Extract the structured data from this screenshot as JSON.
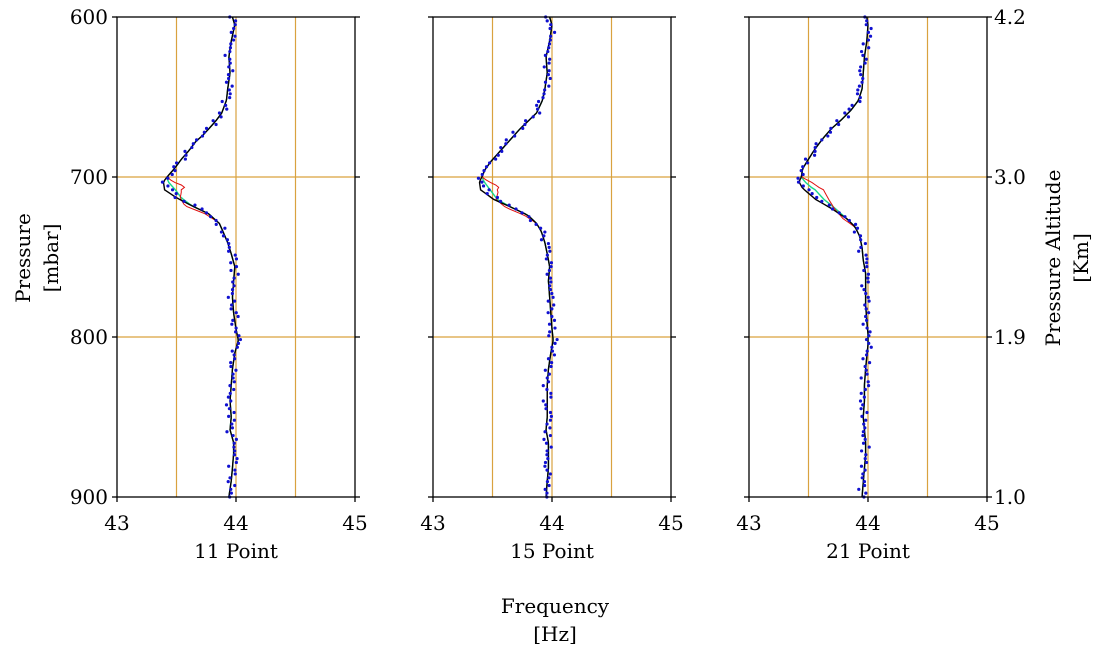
{
  "chart_data": {
    "type": "line",
    "layout": "three vertical profile panels sharing the y axis",
    "x_axis": {
      "label_line1": "Frequency",
      "label_line2": "[Hz]",
      "range": [
        43,
        45
      ],
      "ticks": [
        "43",
        "44",
        "45"
      ],
      "gridlines": [
        43.5,
        44,
        44.5
      ]
    },
    "y_axis_left": {
      "label_line1": "Pressure",
      "label_line2": "[mbar]",
      "range": [
        600,
        900
      ],
      "inverted": true,
      "ticks": [
        "600",
        "700",
        "800",
        "900"
      ],
      "gridlines": [
        700,
        800
      ]
    },
    "y_axis_right": {
      "label_line1": "Pressure Altitude",
      "label_line2": "[Km]",
      "ticks": [
        "4.2",
        "3.0",
        "1.9",
        "1.0"
      ]
    },
    "grid": true,
    "grid_color": "#d9a23f",
    "colors": {
      "points": "#1010d0",
      "smoothed_black": "#000000",
      "smoothed_green": "#18d98c",
      "smoothed_red": "#e01010"
    },
    "panels": [
      {
        "title": "11 Point",
        "profile": [
          [
            43.97,
            600
          ],
          [
            43.99,
            605
          ],
          [
            43.96,
            615
          ],
          [
            43.94,
            625
          ],
          [
            43.95,
            635
          ],
          [
            43.93,
            645
          ],
          [
            43.92,
            652
          ],
          [
            43.88,
            660
          ],
          [
            43.83,
            665
          ],
          [
            43.77,
            670
          ],
          [
            43.72,
            674
          ],
          [
            43.66,
            678
          ],
          [
            43.61,
            683
          ],
          [
            43.54,
            689
          ],
          [
            43.48,
            695
          ],
          [
            43.42,
            700
          ],
          [
            43.39,
            703
          ],
          [
            43.4,
            708
          ],
          [
            43.5,
            713
          ],
          [
            43.63,
            718
          ],
          [
            43.77,
            723
          ],
          [
            43.86,
            729
          ],
          [
            43.89,
            734
          ],
          [
            43.93,
            741
          ],
          [
            43.96,
            748
          ],
          [
            43.99,
            756
          ],
          [
            43.98,
            765
          ],
          [
            43.97,
            775
          ],
          [
            43.98,
            785
          ],
          [
            44.0,
            795
          ],
          [
            44.02,
            802
          ],
          [
            43.99,
            810
          ],
          [
            43.97,
            820
          ],
          [
            43.96,
            830
          ],
          [
            43.95,
            840
          ],
          [
            43.96,
            850
          ],
          [
            43.95,
            858
          ],
          [
            43.98,
            866
          ],
          [
            43.98,
            873
          ],
          [
            43.97,
            882
          ],
          [
            43.96,
            890
          ],
          [
            43.94,
            900
          ]
        ],
        "red_deviation": [
          [
            700,
            0.0
          ],
          [
            703,
            0.08
          ],
          [
            706,
            0.18
          ],
          [
            710,
            0.1
          ],
          [
            713,
            0.03
          ],
          [
            718,
            -0.06
          ],
          [
            723,
            -0.03
          ],
          [
            728,
            0.0
          ]
        ],
        "green_deviation": [
          [
            700,
            0.0
          ],
          [
            703,
            0.04
          ],
          [
            708,
            0.09
          ],
          [
            713,
            0.04
          ],
          [
            718,
            0.0
          ]
        ]
      },
      {
        "title": "15 Point",
        "profile": [
          [
            43.98,
            600
          ],
          [
            44.0,
            605
          ],
          [
            43.98,
            615
          ],
          [
            43.95,
            625
          ],
          [
            43.96,
            635
          ],
          [
            43.94,
            645
          ],
          [
            43.92,
            652
          ],
          [
            43.87,
            660
          ],
          [
            43.8,
            665
          ],
          [
            43.73,
            670
          ],
          [
            43.67,
            675
          ],
          [
            43.61,
            680
          ],
          [
            43.55,
            685
          ],
          [
            43.49,
            690
          ],
          [
            43.44,
            695
          ],
          [
            43.41,
            700
          ],
          [
            43.39,
            703
          ],
          [
            43.4,
            708
          ],
          [
            43.51,
            714
          ],
          [
            43.66,
            719
          ],
          [
            43.8,
            724
          ],
          [
            43.87,
            729
          ],
          [
            43.91,
            734
          ],
          [
            43.94,
            741
          ],
          [
            43.96,
            748
          ],
          [
            43.98,
            756
          ],
          [
            43.97,
            765
          ],
          [
            43.98,
            775
          ],
          [
            43.99,
            785
          ],
          [
            44.0,
            795
          ],
          [
            44.01,
            802
          ],
          [
            43.99,
            810
          ],
          [
            43.97,
            820
          ],
          [
            43.96,
            830
          ],
          [
            43.96,
            840
          ],
          [
            43.96,
            850
          ],
          [
            43.95,
            858
          ],
          [
            43.97,
            866
          ],
          [
            43.97,
            873
          ],
          [
            43.97,
            882
          ],
          [
            43.96,
            890
          ],
          [
            43.95,
            900
          ]
        ],
        "red_deviation": [
          [
            700,
            0.0
          ],
          [
            703,
            0.08
          ],
          [
            706,
            0.16
          ],
          [
            709,
            0.13
          ],
          [
            714,
            0.02
          ],
          [
            719,
            -0.05
          ],
          [
            724,
            -0.03
          ],
          [
            729,
            0.0
          ]
        ],
        "green_deviation": [
          [
            700,
            0.0
          ],
          [
            703,
            0.04
          ],
          [
            708,
            0.08
          ],
          [
            714,
            0.03
          ],
          [
            719,
            0.0
          ]
        ]
      },
      {
        "title": "21 Point",
        "profile": [
          [
            43.99,
            600
          ],
          [
            44.0,
            605
          ],
          [
            43.99,
            615
          ],
          [
            43.97,
            625
          ],
          [
            43.96,
            635
          ],
          [
            43.95,
            645
          ],
          [
            43.92,
            652
          ],
          [
            43.86,
            658
          ],
          [
            43.78,
            664
          ],
          [
            43.69,
            670
          ],
          [
            43.62,
            676
          ],
          [
            43.55,
            683
          ],
          [
            43.49,
            690
          ],
          [
            43.45,
            695
          ],
          [
            43.44,
            700
          ],
          [
            43.42,
            703
          ],
          [
            43.45,
            707
          ],
          [
            43.56,
            714
          ],
          [
            43.7,
            720
          ],
          [
            43.82,
            726
          ],
          [
            43.89,
            731
          ],
          [
            43.93,
            737
          ],
          [
            43.95,
            744
          ],
          [
            43.96,
            752
          ],
          [
            43.98,
            760
          ],
          [
            43.98,
            770
          ],
          [
            43.98,
            780
          ],
          [
            43.99,
            790
          ],
          [
            44.0,
            798
          ],
          [
            44.0,
            805
          ],
          [
            43.99,
            812
          ],
          [
            43.98,
            820
          ],
          [
            43.97,
            830
          ],
          [
            43.97,
            840
          ],
          [
            43.96,
            850
          ],
          [
            43.97,
            858
          ],
          [
            43.98,
            866
          ],
          [
            43.98,
            874
          ],
          [
            43.97,
            882
          ],
          [
            43.96,
            891
          ],
          [
            43.95,
            900
          ]
        ],
        "red_deviation": [
          [
            700,
            0.0
          ],
          [
            703,
            0.1
          ],
          [
            708,
            0.16
          ],
          [
            714,
            0.11
          ],
          [
            720,
            0.02
          ],
          [
            726,
            -0.03
          ],
          [
            732,
            0.0
          ]
        ],
        "green_deviation": [
          [
            700,
            0.0
          ],
          [
            703,
            0.05
          ],
          [
            708,
            0.09
          ],
          [
            714,
            0.07
          ],
          [
            720,
            0.03
          ],
          [
            726,
            0.0
          ]
        ]
      }
    ]
  }
}
